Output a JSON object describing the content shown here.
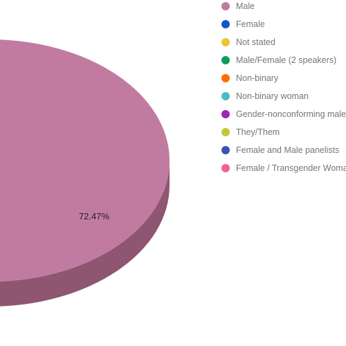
{
  "chart_data": {
    "type": "pie",
    "style": "3d",
    "title": "",
    "legend_position": "right",
    "visible_slice_label": "72.47%",
    "slices": [
      {
        "label": "Male",
        "percent": 72.47,
        "color": "#c27ba0"
      },
      {
        "label": "Female",
        "color": "#1155cc"
      },
      {
        "label": "Not stated",
        "color": "#f1c232"
      },
      {
        "label": "Male/Female (2 speakers)",
        "color": "#0f9d58"
      },
      {
        "label": "Non-binary",
        "color": "#ff6d01"
      },
      {
        "label": "Non-binary woman",
        "color": "#46bdc6"
      },
      {
        "label": "Gender-nonconforming male",
        "color": "#9c27b0"
      },
      {
        "label": "They/Them",
        "color": "#c0ca33"
      },
      {
        "label": "Female and Male panelists",
        "color": "#3f51b5"
      },
      {
        "label": "Female / Transgender Woman",
        "color": "#f06292"
      }
    ],
    "side_color": "#8e5670"
  }
}
